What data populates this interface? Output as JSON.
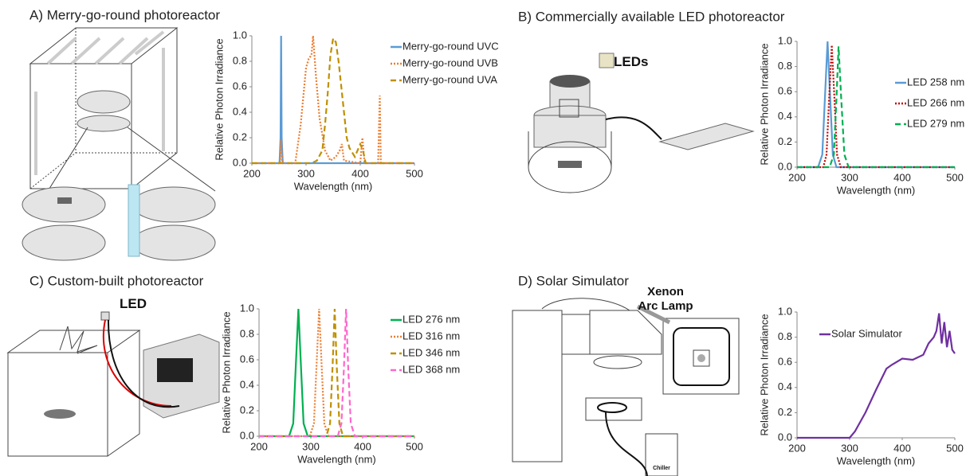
{
  "panels": [
    {
      "title": "A) Merry-go-round photoreactor",
      "labels": []
    },
    {
      "title": "B) Commercially available LED photoreactor",
      "labels": [
        "LEDs"
      ]
    },
    {
      "title": "C) Custom-built photoreactor",
      "labels": [
        "LED"
      ]
    },
    {
      "title": "D) Solar Simulator",
      "labels": [
        "Xenon Arc Lamp",
        "Chiller"
      ]
    }
  ],
  "chart_data": [
    {
      "type": "line",
      "x_label": "Wavelength (nm)",
      "y_label": "Relative Photon Irradiance",
      "xlim": [
        200,
        500
      ],
      "xticks": [
        200,
        300,
        400,
        500
      ],
      "ylim": [
        0,
        1
      ],
      "yticks": [
        {
          "value": 0,
          "label": "0.0"
        },
        0.2,
        0.4,
        0.6,
        0.8,
        {
          "value": 1,
          "label": "1.0"
        }
      ],
      "legend": "outside right",
      "series": [
        {
          "name": "Merry-go-round UVC",
          "color": "#5b9bd5",
          "line_style": "solid",
          "x": [
            200,
            251,
            253,
            254,
            255,
            257,
            500
          ],
          "values": [
            0,
            0,
            0.2,
            1,
            0.2,
            0,
            0
          ]
        },
        {
          "name": "Merry-go-round UVB",
          "color": "#ed7d31",
          "line_style": "dotted",
          "x": [
            200,
            252,
            254,
            256,
            280,
            290,
            300,
            305,
            310,
            313,
            318,
            325,
            335,
            345,
            355,
            362,
            366,
            370,
            400,
            404,
            408,
            433,
            436,
            438,
            500
          ],
          "values": [
            0,
            0,
            0.18,
            0,
            0,
            0.3,
            0.75,
            0.82,
            0.85,
            1,
            0.7,
            0.35,
            0.1,
            0.02,
            0.05,
            0.1,
            0.15,
            0.02,
            0,
            0.2,
            0,
            0,
            0.53,
            0,
            0
          ]
        },
        {
          "name": "Merry-go-round UVA",
          "color": "#bf9000",
          "line_style": "dashed",
          "x": [
            200,
            310,
            320,
            330,
            335,
            340,
            345,
            350,
            355,
            360,
            365,
            370,
            375,
            380,
            390,
            400,
            405,
            410,
            500
          ],
          "values": [
            0,
            0,
            0.02,
            0.1,
            0.3,
            0.55,
            0.85,
            0.98,
            0.95,
            0.8,
            0.6,
            0.4,
            0.2,
            0.12,
            0.05,
            0.15,
            0.1,
            0,
            0
          ]
        }
      ]
    },
    {
      "type": "line",
      "x_label": "Wavelength (nm)",
      "y_label": "Relative Photon Irradiance",
      "xlim": [
        200,
        500
      ],
      "xticks": [
        200,
        300,
        400,
        500
      ],
      "ylim": [
        0,
        1
      ],
      "yticks": [
        {
          "value": 0,
          "label": "0.0"
        },
        0.2,
        0.4,
        0.6,
        0.8,
        {
          "value": 1,
          "label": "1.0"
        }
      ],
      "legend": "right",
      "series": [
        {
          "name": "LED 258 nm",
          "color": "#5b9bd5",
          "line_style": "solid",
          "x": [
            200,
            240,
            248,
            253,
            258,
            263,
            268,
            275,
            500
          ],
          "values": [
            0,
            0,
            0.1,
            0.55,
            1,
            0.55,
            0.1,
            0,
            0
          ]
        },
        {
          "name": "LED 266 nm",
          "color": "#c00000",
          "line_style": "dotted",
          "x": [
            200,
            250,
            256,
            261,
            266,
            271,
            276,
            283,
            500
          ],
          "values": [
            0,
            0,
            0.1,
            0.55,
            0.97,
            0.55,
            0.1,
            0,
            0
          ]
        },
        {
          "name": "LED 279 nm",
          "color": "#00b050",
          "line_style": "dashed",
          "x": [
            200,
            262,
            270,
            275,
            279,
            284,
            290,
            298,
            500
          ],
          "values": [
            0,
            0,
            0.1,
            0.55,
            0.96,
            0.55,
            0.1,
            0,
            0
          ]
        }
      ]
    },
    {
      "type": "line",
      "x_label": "Wavelength (nm)",
      "y_label": "Relative Photon Irradiance",
      "xlim": [
        200,
        500
      ],
      "xticks": [
        200,
        300,
        400,
        500
      ],
      "ylim": [
        0,
        1
      ],
      "yticks": [
        {
          "value": 0,
          "label": "0.0"
        },
        0.2,
        0.4,
        0.6,
        0.8,
        {
          "value": 1,
          "label": "1.0"
        }
      ],
      "legend": "outside right",
      "series": [
        {
          "name": "LED 276 nm",
          "color": "#00b050",
          "line_style": "solid",
          "x": [
            200,
            258,
            266,
            271,
            276,
            281,
            286,
            294,
            500
          ],
          "values": [
            0,
            0,
            0.1,
            0.55,
            1,
            0.55,
            0.1,
            0,
            0
          ]
        },
        {
          "name": "LED 316 nm",
          "color": "#ed7d31",
          "line_style": "dotted",
          "x": [
            200,
            298,
            306,
            311,
            316,
            321,
            326,
            334,
            500
          ],
          "values": [
            0,
            0,
            0.1,
            0.55,
            1,
            0.55,
            0.1,
            0,
            0
          ]
        },
        {
          "name": "LED 346 nm",
          "color": "#bf9000",
          "line_style": "dashed",
          "x": [
            200,
            330,
            337,
            342,
            346,
            350,
            355,
            362,
            500
          ],
          "values": [
            0,
            0,
            0.1,
            0.55,
            1,
            0.55,
            0.1,
            0,
            0
          ]
        },
        {
          "name": "LED 368 nm",
          "color": "#ff66cc",
          "line_style": "dashed",
          "x": [
            200,
            352,
            359,
            364,
            368,
            372,
            377,
            385,
            500
          ],
          "values": [
            0,
            0,
            0.1,
            0.55,
            1,
            0.55,
            0.1,
            0,
            0
          ]
        }
      ]
    },
    {
      "type": "line",
      "x_label": "Wavelength (nm)",
      "y_label": "Relative Photon Irradiance",
      "xlim": [
        200,
        500
      ],
      "xticks": [
        200,
        300,
        400,
        500
      ],
      "ylim": [
        0,
        1
      ],
      "yticks": [
        {
          "value": 0,
          "label": "0.0"
        },
        0.2,
        0.4,
        0.6,
        0.8,
        {
          "value": 1,
          "label": "1.0"
        }
      ],
      "legend": "upper left",
      "series": [
        {
          "name": "Solar Simulator",
          "color": "#7030a0",
          "line_style": "solid",
          "x": [
            200,
            300,
            310,
            330,
            350,
            370,
            380,
            400,
            420,
            440,
            450,
            460,
            465,
            470,
            475,
            480,
            485,
            490,
            495,
            500
          ],
          "values": [
            0,
            0,
            0.05,
            0.2,
            0.38,
            0.55,
            0.58,
            0.63,
            0.62,
            0.66,
            0.75,
            0.8,
            0.85,
            0.99,
            0.75,
            0.92,
            0.72,
            0.85,
            0.7,
            0.67
          ]
        }
      ]
    }
  ]
}
